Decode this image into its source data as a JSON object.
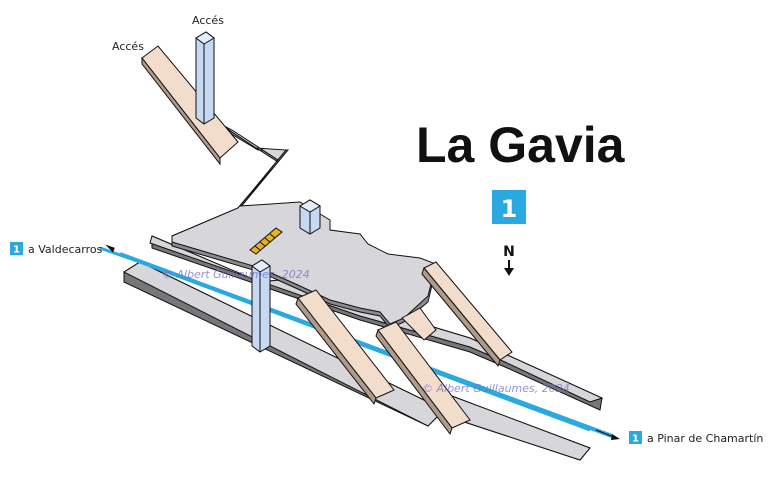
{
  "station": {
    "title": "La Gavia",
    "line_number": "1",
    "line_color": "#29a9e0"
  },
  "access_labels": [
    "Accés",
    "Accés"
  ],
  "destinations": {
    "left": {
      "line": "1",
      "text": "a Valdecarros"
    },
    "right": {
      "line": "1",
      "text": "a Pinar de Chamartín"
    }
  },
  "compass": {
    "label": "N"
  },
  "watermarks": [
    "© Albert Guillaumes, 2024",
    "© Albert Guillaumes, 2024"
  ],
  "colors": {
    "concourse": "#d7d7db",
    "stairs": "#f2dccb",
    "elevator": "#c6d8f2",
    "track": "#29a9e0",
    "escalator": "#e8b020"
  }
}
